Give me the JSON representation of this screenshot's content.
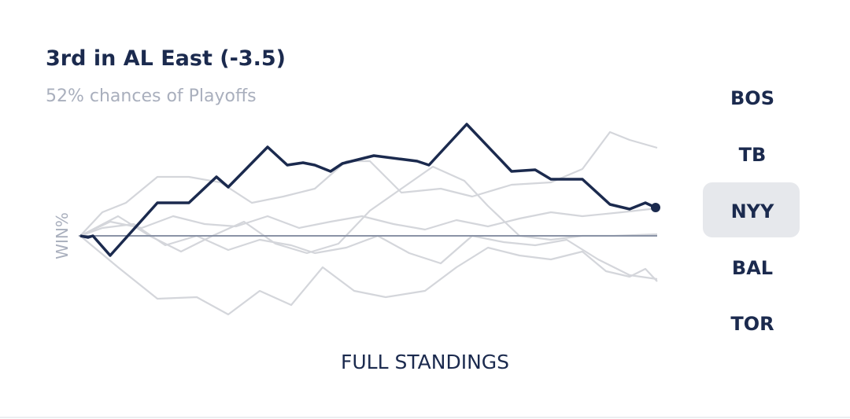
{
  "header": {
    "title": "3rd in AL East (-3.5)",
    "subtitle": "52% chances of Playoffs"
  },
  "chart": {
    "y_label": "WIN%"
  },
  "teams": [
    {
      "label": "BOS"
    },
    {
      "label": "TB"
    },
    {
      "label": "NYY"
    },
    {
      "label": "BAL"
    },
    {
      "label": "TOR"
    }
  ],
  "link": {
    "label": "FULL STANDINGS"
  }
}
